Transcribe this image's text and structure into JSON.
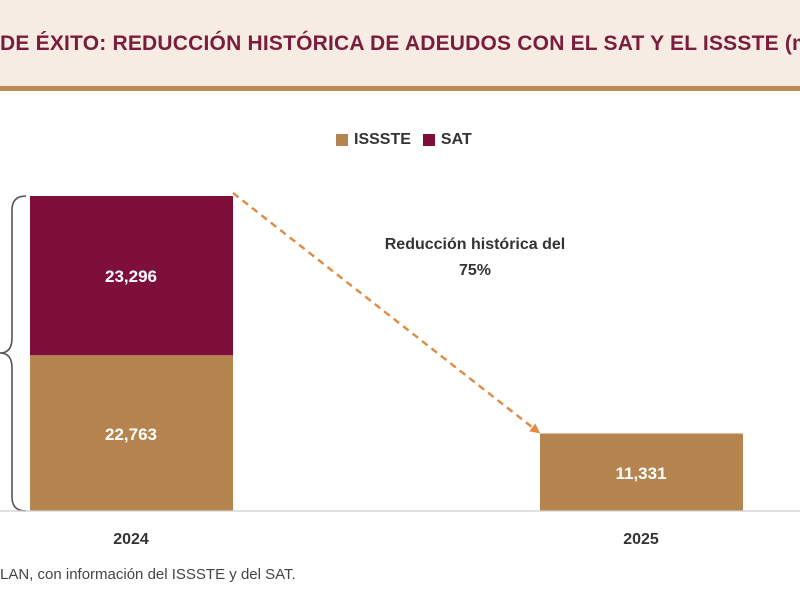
{
  "header": {
    "title": "DE ÉXITO: REDUCCIÓN HISTÓRICA DE ADEUDOS CON EL SAT Y EL ISSSTE (mo"
  },
  "colors": {
    "issste": "#b5844f",
    "sat": "#7e0f3a",
    "arrow": "#e08a43",
    "title": "#7a1d3c"
  },
  "chart_data": {
    "type": "bar",
    "stacked": true,
    "categories": [
      "2024",
      "2025"
    ],
    "series": [
      {
        "name": "ISSSTE",
        "values": [
          22763,
          11331
        ],
        "labels": [
          "22,763",
          "11,331"
        ]
      },
      {
        "name": "SAT",
        "values": [
          23296,
          null
        ],
        "labels": [
          "23,296",
          ""
        ]
      }
    ],
    "legend": [
      "ISSSTE",
      "SAT"
    ],
    "legend_position": "top-center",
    "annotation": {
      "line1": "Reducción histórica del",
      "line2": "75%"
    },
    "ylim": [
      0,
      46059
    ]
  },
  "footer": {
    "source": "LAN, con información del ISSSTE y del SAT."
  }
}
